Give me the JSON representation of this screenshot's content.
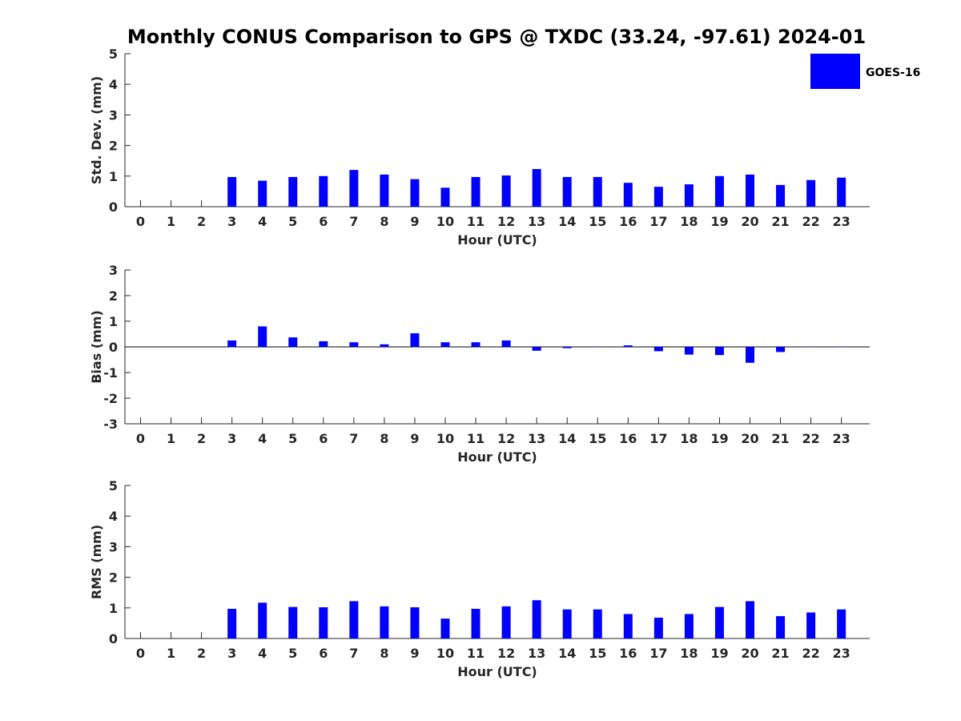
{
  "title": "Monthly CONUS Comparison to GPS @ TXDC (33.24, -97.61) 2024-01",
  "legend": {
    "label": "GOES-16",
    "color": "#0000ff"
  },
  "colors": {
    "bar": "#0000ff",
    "axis": "#262626",
    "zero_line": "#000000"
  },
  "chart_data": [
    {
      "type": "bar",
      "name": "std-dev",
      "ylabel": "Std. Dev. (mm)",
      "xlabel": "Hour (UTC)",
      "ylim": [
        0,
        5
      ],
      "yticks": [
        "0",
        "1",
        "2",
        "3",
        "4",
        "5"
      ],
      "categories": [
        "0",
        "1",
        "2",
        "3",
        "4",
        "5",
        "6",
        "7",
        "8",
        "9",
        "10",
        "11",
        "12",
        "13",
        "14",
        "15",
        "16",
        "17",
        "18",
        "19",
        "20",
        "21",
        "22",
        "23"
      ],
      "series": [
        {
          "name": "GOES-16",
          "values": [
            null,
            null,
            null,
            0.97,
            0.85,
            0.97,
            1.0,
            1.2,
            1.05,
            0.9,
            0.62,
            0.97,
            1.02,
            1.23,
            0.97,
            0.97,
            0.78,
            0.65,
            0.73,
            1.0,
            1.05,
            0.71,
            0.87,
            0.95
          ]
        }
      ]
    },
    {
      "type": "bar",
      "name": "bias",
      "ylabel": "Bias (mm)",
      "xlabel": "Hour (UTC)",
      "ylim": [
        -3,
        3
      ],
      "yticks": [
        "-3",
        "-2",
        "-1",
        "0",
        "1",
        "2",
        "3"
      ],
      "categories": [
        "0",
        "1",
        "2",
        "3",
        "4",
        "5",
        "6",
        "7",
        "8",
        "9",
        "10",
        "11",
        "12",
        "13",
        "14",
        "15",
        "16",
        "17",
        "18",
        "19",
        "20",
        "21",
        "22",
        "23"
      ],
      "series": [
        {
          "name": "GOES-16",
          "values": [
            null,
            null,
            null,
            0.25,
            0.8,
            0.37,
            0.22,
            0.18,
            0.1,
            0.53,
            0.18,
            0.18,
            0.25,
            -0.15,
            -0.05,
            0.0,
            0.06,
            -0.17,
            -0.3,
            -0.32,
            -0.62,
            -0.2,
            0.0,
            0.0
          ]
        }
      ]
    },
    {
      "type": "bar",
      "name": "rms",
      "ylabel": "RMS (mm)",
      "xlabel": "Hour (UTC)",
      "ylim": [
        0,
        5
      ],
      "yticks": [
        "0",
        "1",
        "2",
        "3",
        "4",
        "5"
      ],
      "categories": [
        "0",
        "1",
        "2",
        "3",
        "4",
        "5",
        "6",
        "7",
        "8",
        "9",
        "10",
        "11",
        "12",
        "13",
        "14",
        "15",
        "16",
        "17",
        "18",
        "19",
        "20",
        "21",
        "22",
        "23"
      ],
      "series": [
        {
          "name": "GOES-16",
          "values": [
            null,
            null,
            null,
            0.97,
            1.17,
            1.03,
            1.02,
            1.22,
            1.05,
            1.02,
            0.65,
            0.97,
            1.05,
            1.25,
            0.95,
            0.95,
            0.8,
            0.68,
            0.8,
            1.03,
            1.22,
            0.73,
            0.85,
            0.95
          ]
        }
      ]
    }
  ]
}
